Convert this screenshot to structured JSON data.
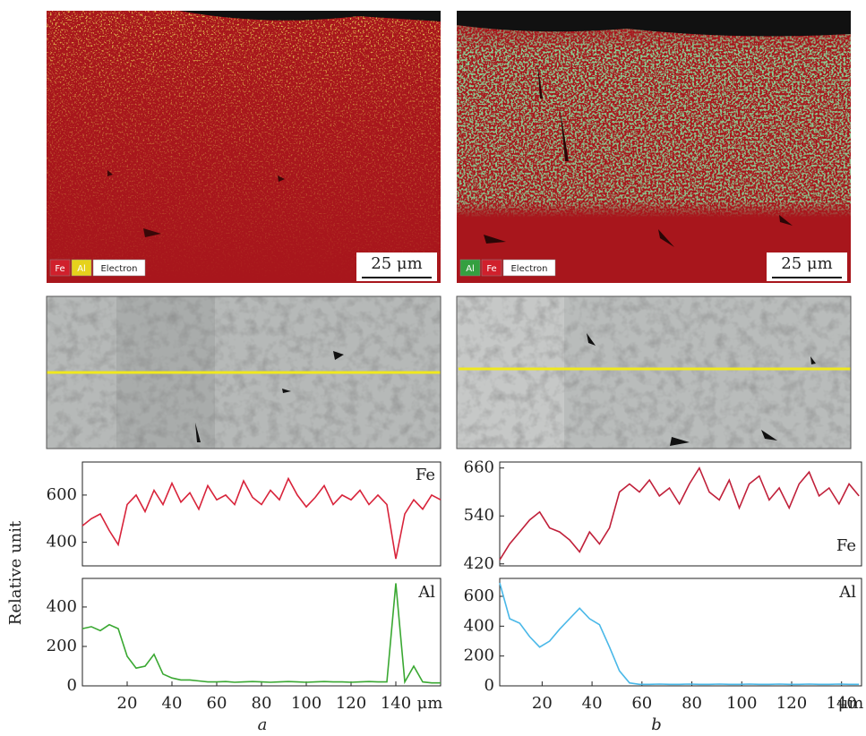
{
  "figure": {
    "ylabel": "Relative unit",
    "panel_labels": [
      "a",
      "b"
    ]
  },
  "micrographs": [
    {
      "legend": [
        {
          "label": "Fe",
          "color": "#d0202c"
        },
        {
          "label": "Al",
          "color": "#e6d21c"
        },
        {
          "label": "Electron",
          "color": "#ffffff"
        }
      ],
      "scale_bar": "25 μm"
    },
    {
      "legend": [
        {
          "label": "Al",
          "color": "#34a040"
        },
        {
          "label": "Fe",
          "color": "#d0202c"
        },
        {
          "label": "Electron",
          "color": "#ffffff"
        }
      ],
      "scale_bar": "25 μm"
    }
  ],
  "chart_data": [
    {
      "type": "line",
      "title": "Fe",
      "color": "#d8233a",
      "x": [
        0,
        4,
        8,
        12,
        16,
        20,
        24,
        28,
        32,
        36,
        40,
        44,
        48,
        52,
        56,
        60,
        64,
        68,
        72,
        76,
        80,
        84,
        88,
        92,
        96,
        100,
        104,
        108,
        112,
        116,
        120,
        124,
        128,
        132,
        136,
        140,
        144,
        148,
        152,
        156,
        160
      ],
      "values": [
        470,
        500,
        520,
        450,
        390,
        560,
        600,
        530,
        620,
        560,
        650,
        570,
        610,
        540,
        640,
        580,
        600,
        560,
        660,
        590,
        560,
        620,
        580,
        670,
        600,
        550,
        590,
        640,
        560,
        600,
        580,
        620,
        560,
        600,
        560,
        330,
        520,
        580,
        540,
        600,
        580
      ],
      "xlim": [
        0,
        160
      ],
      "ylim": [
        300,
        740
      ],
      "yticks": [
        400,
        600
      ]
    },
    {
      "type": "line",
      "title": "Al",
      "color": "#3aa832",
      "xlabel": "μm",
      "x": [
        0,
        4,
        8,
        12,
        16,
        20,
        24,
        28,
        32,
        36,
        40,
        44,
        48,
        52,
        56,
        60,
        64,
        68,
        72,
        76,
        80,
        84,
        88,
        92,
        96,
        100,
        104,
        108,
        112,
        116,
        120,
        124,
        128,
        132,
        136,
        140,
        144,
        148,
        152,
        156,
        160
      ],
      "values": [
        290,
        300,
        280,
        310,
        290,
        150,
        90,
        100,
        160,
        60,
        40,
        30,
        30,
        25,
        20,
        20,
        22,
        18,
        20,
        22,
        20,
        18,
        20,
        22,
        20,
        18,
        20,
        22,
        20,
        20,
        18,
        20,
        22,
        20,
        20,
        520,
        20,
        100,
        20,
        15,
        15
      ],
      "xlim": [
        0,
        160
      ],
      "ylim": [
        0,
        545
      ],
      "yticks": [
        0,
        200,
        400
      ],
      "xticks": [
        20,
        40,
        60,
        80,
        100,
        120,
        140
      ]
    },
    {
      "type": "line",
      "title": "Fe",
      "color": "#c0203a",
      "x": [
        3,
        7,
        11,
        15,
        19,
        23,
        27,
        31,
        35,
        39,
        43,
        47,
        51,
        55,
        59,
        63,
        67,
        71,
        75,
        79,
        83,
        87,
        91,
        95,
        99,
        103,
        107,
        111,
        115,
        119,
        123,
        127,
        131,
        135,
        139,
        143,
        147
      ],
      "values": [
        430,
        470,
        500,
        530,
        550,
        510,
        500,
        480,
        450,
        500,
        470,
        510,
        600,
        620,
        600,
        630,
        590,
        610,
        570,
        620,
        660,
        600,
        580,
        630,
        560,
        620,
        640,
        580,
        610,
        560,
        620,
        650,
        590,
        610,
        570,
        620,
        590
      ],
      "xlim": [
        3,
        148
      ],
      "ylim": [
        415,
        675
      ],
      "yticks": [
        420,
        540,
        660
      ]
    },
    {
      "type": "line",
      "title": "Al",
      "color": "#4ab8e8",
      "xlabel": "μm",
      "x": [
        3,
        7,
        11,
        15,
        19,
        23,
        27,
        31,
        35,
        39,
        43,
        47,
        51,
        55,
        59,
        63,
        67,
        71,
        75,
        79,
        83,
        87,
        91,
        95,
        99,
        103,
        107,
        111,
        115,
        119,
        123,
        127,
        131,
        135,
        139,
        143,
        147
      ],
      "values": [
        690,
        450,
        420,
        330,
        260,
        300,
        380,
        450,
        520,
        450,
        410,
        260,
        100,
        20,
        10,
        10,
        12,
        10,
        10,
        12,
        10,
        10,
        12,
        10,
        10,
        12,
        10,
        10,
        12,
        10,
        10,
        12,
        10,
        10,
        12,
        10,
        10
      ],
      "xlim": [
        3,
        148
      ],
      "ylim": [
        0,
        720
      ],
      "yticks": [
        0,
        200,
        400,
        600
      ],
      "xticks": [
        20,
        40,
        60,
        80,
        100,
        120,
        140
      ]
    }
  ]
}
